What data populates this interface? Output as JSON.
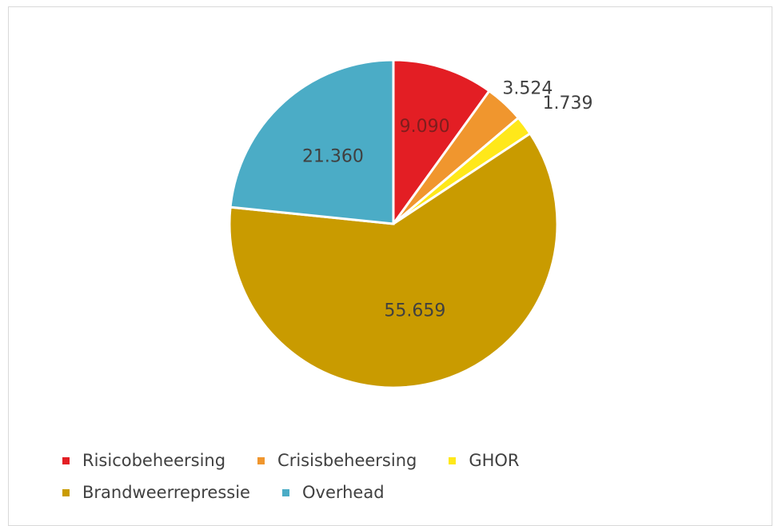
{
  "chart_data": {
    "type": "pie",
    "title": "",
    "categories": [
      "Risicobeheersing",
      "Crisisbeheersing",
      "GHOR",
      "Brandweerrepressie",
      "Overhead"
    ],
    "values": [
      9090,
      3524,
      1739,
      55659,
      21360
    ],
    "data_labels": [
      "9.090",
      "3.524",
      "1.739",
      "55.659",
      "21.360"
    ],
    "colors": [
      "#e31e24",
      "#f0962e",
      "#ffe81a",
      "#c99b00",
      "#4bacc6"
    ],
    "label_colors": [
      "#7f1d1d",
      "#404040",
      "#404040",
      "#404040",
      "#404040"
    ],
    "start_angle_deg": 0,
    "direction": "clockwise",
    "legend_position": "bottom"
  }
}
